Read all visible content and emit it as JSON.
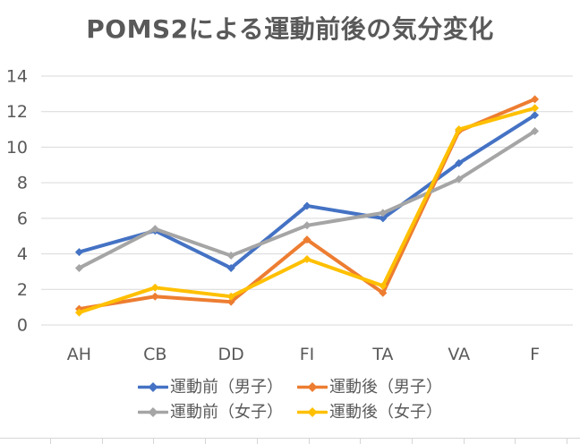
{
  "chart_data": {
    "type": "line",
    "title": "POMS2による運動前後の気分変化",
    "categories": [
      "AH",
      "CB",
      "DD",
      "FI",
      "TA",
      "VA",
      "F"
    ],
    "series": [
      {
        "name": "運動前（男子）",
        "color": "#4472C4",
        "values": [
          4.1,
          5.3,
          3.2,
          6.7,
          6.0,
          9.1,
          11.8
        ]
      },
      {
        "name": "運動後（男子）",
        "color": "#ED7D31",
        "values": [
          0.9,
          1.6,
          1.3,
          4.8,
          1.8,
          10.9,
          12.7
        ]
      },
      {
        "name": "運動前（女子）",
        "color": "#A5A5A5",
        "values": [
          3.2,
          5.4,
          3.9,
          5.6,
          6.3,
          8.2,
          10.9
        ]
      },
      {
        "name": "運動後（女子）",
        "color": "#FFC000",
        "values": [
          0.7,
          2.1,
          1.6,
          3.7,
          2.2,
          11.0,
          12.2
        ]
      }
    ],
    "ylim": [
      0,
      14
    ],
    "yticks": [
      0,
      2,
      4,
      6,
      8,
      10,
      12,
      14
    ],
    "grid": "horizontal",
    "legend_position": "bottom",
    "legend_items_per_row": 2,
    "text_color": "#595959",
    "grid_color": "#D9D9D9",
    "marker": "diamond"
  },
  "sheet": {
    "cell_line_color": "#D6D6D6"
  }
}
